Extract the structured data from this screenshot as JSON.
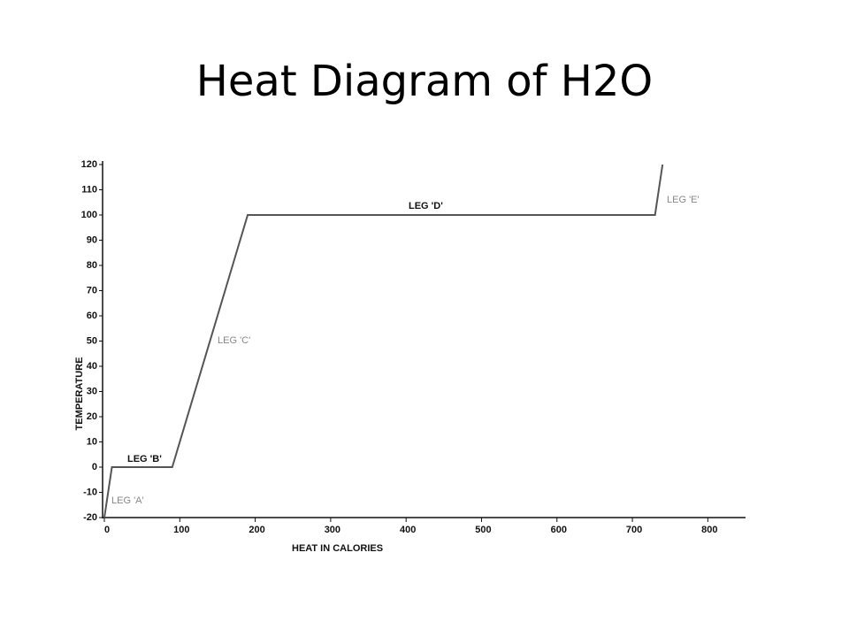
{
  "chart_data": {
    "type": "line",
    "title": "Heat Diagram of H2O",
    "x_label": "HEAT IN CALORIES",
    "y_label": "TEMPERATURE",
    "x": [
      0,
      10,
      90,
      190,
      730,
      740
    ],
    "values": [
      -20,
      0,
      0,
      100,
      100,
      120
    ],
    "color": "#555555",
    "xlim": [
      0,
      850
    ],
    "xticks": [
      0,
      100,
      200,
      300,
      400,
      500,
      600,
      700,
      800
    ],
    "ylim": [
      -20,
      120
    ],
    "yticks": [
      -20,
      -10,
      0,
      10,
      20,
      30,
      40,
      50,
      60,
      70,
      80,
      90,
      100,
      110,
      120
    ],
    "annotations": [
      "LEG 'A'",
      "LEG 'B'",
      "LEG 'C'",
      "LEG 'D'",
      "LEG 'E'"
    ]
  }
}
